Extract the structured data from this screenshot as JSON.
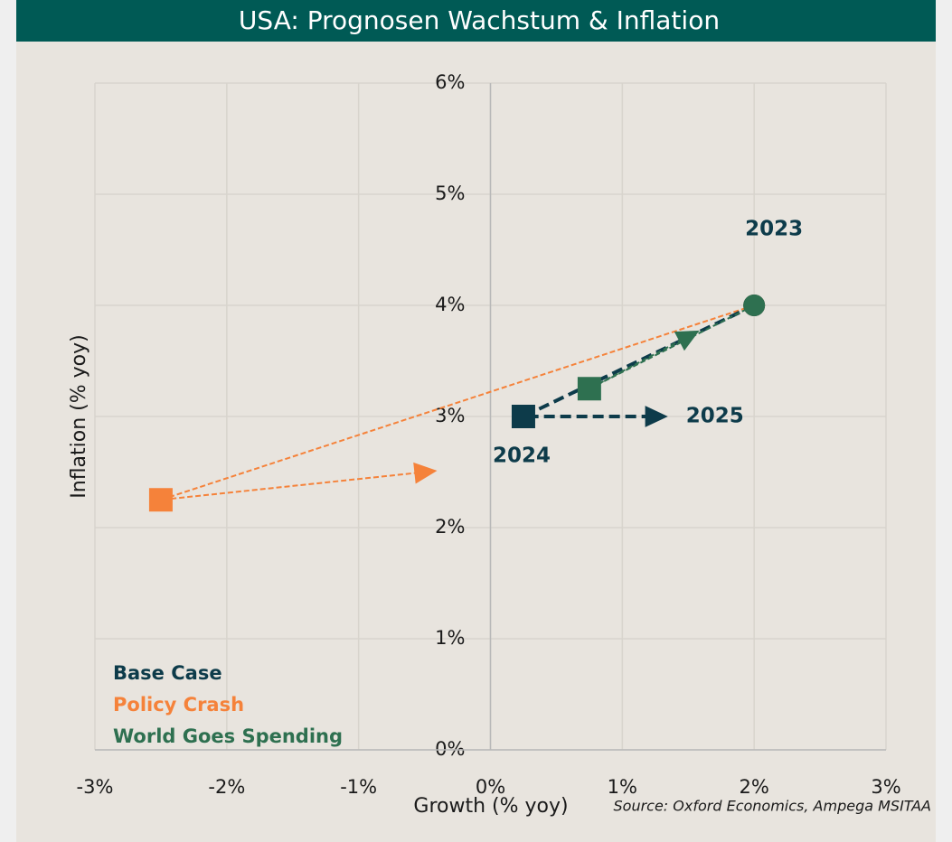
{
  "chart_data": {
    "type": "line",
    "title": "USA: Prognosen Wachstum & Inflation",
    "x_label": "Growth (% yoy)",
    "y_label": "Inflation (% yoy)",
    "source": "Source: Oxford Economics, Ampega MSITAA",
    "xlim": [
      -3,
      3
    ],
    "ylim": [
      0,
      6
    ],
    "xticks": [
      {
        "value": -3,
        "label": "-3%"
      },
      {
        "value": -2,
        "label": "-2%"
      },
      {
        "value": -1,
        "label": "-1%"
      },
      {
        "value": 0,
        "label": "0%"
      },
      {
        "value": 1,
        "label": "1%"
      },
      {
        "value": 2,
        "label": "2%"
      },
      {
        "value": 3,
        "label": "3%"
      }
    ],
    "yticks": [
      {
        "value": 0,
        "label": "0%"
      },
      {
        "value": 1,
        "label": "1%"
      },
      {
        "value": 2,
        "label": "2%"
      },
      {
        "value": 3,
        "label": "3%"
      },
      {
        "value": 4,
        "label": "4%"
      },
      {
        "value": 5,
        "label": "5%"
      },
      {
        "value": 6,
        "label": "6%"
      }
    ],
    "grid": true,
    "legend": "lower left",
    "annotations": [
      "2023",
      "2024",
      "2025"
    ],
    "series": [
      {
        "name": "Policy Crash",
        "color": "#f5823a",
        "line_width": 2,
        "markers": [
          "circle",
          "square",
          "triangle"
        ],
        "x": [
          2,
          -2.5,
          -0.5
        ],
        "values": [
          4,
          2.25,
          2.5
        ]
      },
      {
        "name": "Base Case",
        "color": "#0d3b4a",
        "line_width": 4,
        "markers": [
          "circle",
          "square",
          "triangle"
        ],
        "x": [
          2,
          0.25,
          1.25
        ],
        "values": [
          4,
          3,
          3
        ]
      },
      {
        "name": "World Goes Spending",
        "color": "#2e7050",
        "line_width": 2,
        "markers": [
          "circle",
          "square",
          "triangle"
        ],
        "x": [
          2,
          0.75,
          1.5
        ],
        "values": [
          4,
          3.25,
          3.72
        ]
      }
    ]
  }
}
